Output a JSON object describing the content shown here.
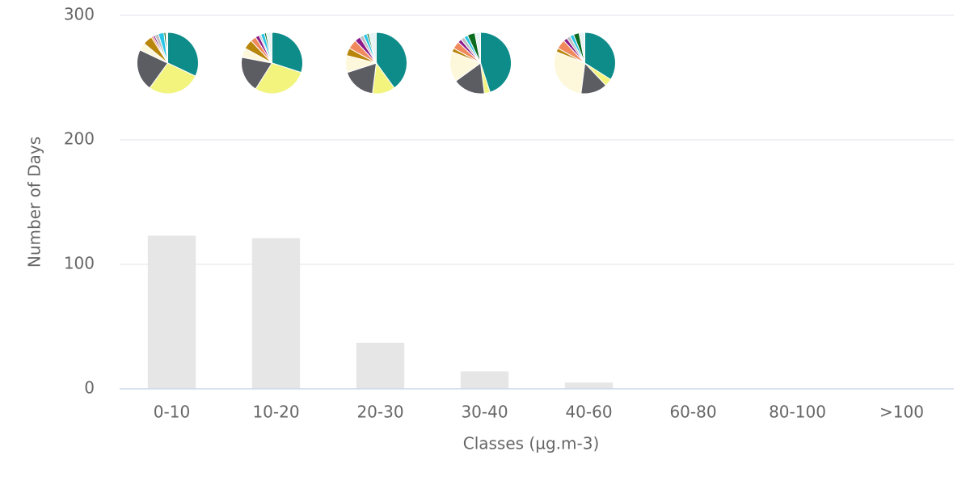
{
  "chart_data": {
    "type": "bar",
    "x_label": "Classes (µg.m-3)",
    "y_label": "Number of Days",
    "categories": [
      "0-10",
      "10-20",
      "20-30",
      "30-40",
      "40-60",
      "60-80",
      "80-100",
      ">100"
    ],
    "values": [
      123,
      121,
      37,
      14,
      5,
      0,
      0,
      0
    ],
    "color": "#e6e6e6",
    "ylim": [
      0,
      300
    ],
    "yticks": [
      0,
      100,
      200,
      300
    ],
    "grid": true,
    "pie_colors": [
      "#0e8c8a",
      "#f2f47e",
      "#5c5c63",
      "#fdf8dc",
      "#b8860b",
      "#f08a5d",
      "#8b1a8b",
      "#bfbfbf",
      "#29c5e6",
      "#0b6b1f",
      "#e8f4f4"
    ],
    "pies": [
      {
        "values": [
          32,
          28,
          22,
          4,
          5,
          1,
          1,
          2,
          3,
          1,
          1
        ]
      },
      {
        "values": [
          30,
          29,
          19,
          5,
          5,
          3,
          2,
          1,
          2,
          1,
          3
        ]
      },
      {
        "values": [
          40,
          12,
          18,
          9,
          4,
          5,
          3,
          2,
          2,
          1,
          4
        ]
      },
      {
        "values": [
          45,
          3,
          17,
          16,
          2,
          4,
          2,
          2,
          2,
          4,
          3
        ]
      },
      {
        "values": [
          34,
          4,
          14,
          29,
          2,
          5,
          2,
          2,
          2,
          3,
          3
        ]
      }
    ]
  }
}
